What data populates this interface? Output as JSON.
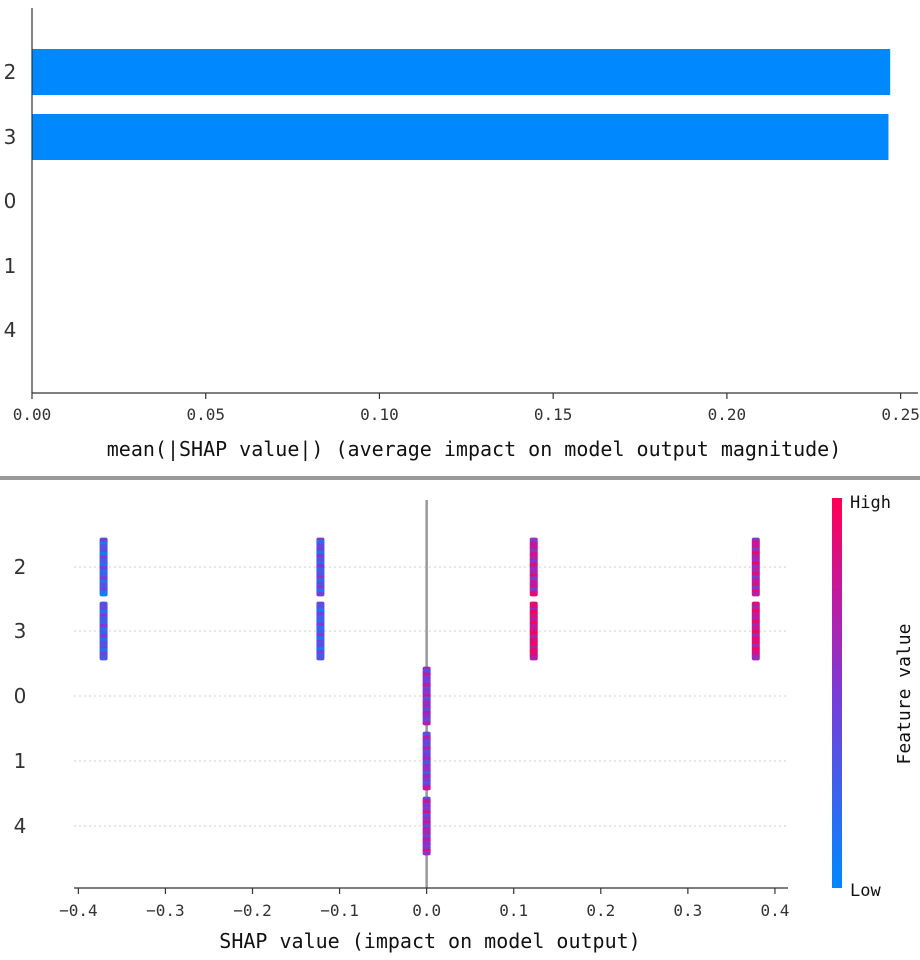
{
  "colors": {
    "bar": "#0088ff",
    "low": "#0088ff",
    "high": "#ff0052",
    "axis": "#333333",
    "divider": "#9a9a9a",
    "zero_line": "#999999"
  },
  "chart_data": [
    {
      "type": "bar",
      "orientation": "horizontal",
      "categories": [
        "2",
        "3",
        "0",
        "1",
        "4"
      ],
      "values": [
        0.247,
        0.2465,
        0,
        0,
        0
      ],
      "xlim": [
        0,
        0.255
      ],
      "xticks": [
        "0.00",
        "0.05",
        "0.10",
        "0.15",
        "0.20",
        "0.25"
      ],
      "xtick_values": [
        0,
        0.05,
        0.1,
        0.15,
        0.2,
        0.25
      ],
      "xlabel": "mean(|SHAP value|) (average impact on model output magnitude)",
      "grid": false
    },
    {
      "type": "scatter",
      "subtype": "beeswarm",
      "categories": [
        "2",
        "3",
        "0",
        "1",
        "4"
      ],
      "xlim": [
        -0.405,
        0.415
      ],
      "xticks": [
        "−0.4",
        "−0.3",
        "−0.2",
        "−0.1",
        "0.0",
        "0.1",
        "0.2",
        "0.3",
        "0.4"
      ],
      "xtick_values": [
        -0.4,
        -0.3,
        -0.2,
        -0.1,
        0,
        0.1,
        0.2,
        0.3,
        0.4
      ],
      "xlabel": "SHAP value (impact on model output)",
      "clusters": [
        {
          "feature": "2",
          "x": -0.371,
          "level": 0.3
        },
        {
          "feature": "2",
          "x": -0.122,
          "level": 0.35
        },
        {
          "feature": "2",
          "x": 0.123,
          "level": 0.7
        },
        {
          "feature": "2",
          "x": 0.378,
          "level": 0.72
        },
        {
          "feature": "3",
          "x": -0.371,
          "level": 0.32
        },
        {
          "feature": "3",
          "x": -0.122,
          "level": 0.3
        },
        {
          "feature": "3",
          "x": 0.123,
          "level": 0.85
        },
        {
          "feature": "3",
          "x": 0.378,
          "level": 0.82
        },
        {
          "feature": "0",
          "x": 0.0,
          "level": 0.55
        },
        {
          "feature": "1",
          "x": 0.0,
          "level": 0.5
        },
        {
          "feature": "4",
          "x": 0.0,
          "level": 0.6
        }
      ],
      "colorbar": {
        "high_label": "High",
        "low_label": "Low",
        "title": "Feature value"
      },
      "grid": "dotted horizontal"
    }
  ]
}
